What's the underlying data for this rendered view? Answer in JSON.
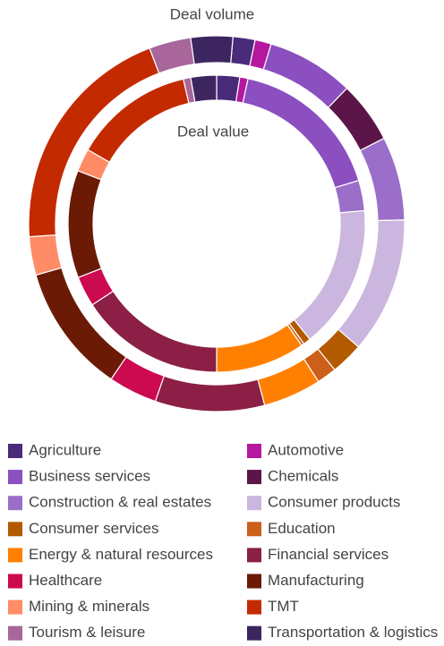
{
  "chart_data": {
    "type": "donut",
    "categories": [
      "Agriculture",
      "Automotive",
      "Business services",
      "Chemicals",
      "Construction & real estates",
      "Consumer products",
      "Consumer services",
      "Education",
      "Energy & natural resources",
      "Financial services",
      "Healthcare",
      "Manufacturing",
      "Mining & minerals",
      "TMT",
      "Tourism & leisure",
      "Transportation & logistics"
    ],
    "colors": [
      "#4a2b79",
      "#b5179e",
      "#8b4fc0",
      "#5b1548",
      "#9b6fc9",
      "#cbb6df",
      "#b35a00",
      "#cc5f1a",
      "#ff8000",
      "#8b1f45",
      "#cc0a4f",
      "#6b1a05",
      "#ff8c66",
      "#c42a00",
      "#a8669a",
      "#3d2660"
    ],
    "series": [
      {
        "name": "Deal volume",
        "values": [
          1.9,
          1.4,
          7.5,
          5.3,
          7.2,
          11.7,
          2.8,
          1.7,
          5.0,
          9.4,
          4.2,
          11.1,
          3.3,
          20.3,
          3.6,
          3.6
        ]
      },
      {
        "name": "Deal value",
        "values": [
          2.5,
          0.9,
          16.9,
          0,
          3.3,
          15.6,
          0.8,
          0.3,
          9.7,
          15.8,
          3.3,
          11.7,
          2.5,
          13.1,
          0.8,
          2.8
        ]
      }
    ]
  }
}
